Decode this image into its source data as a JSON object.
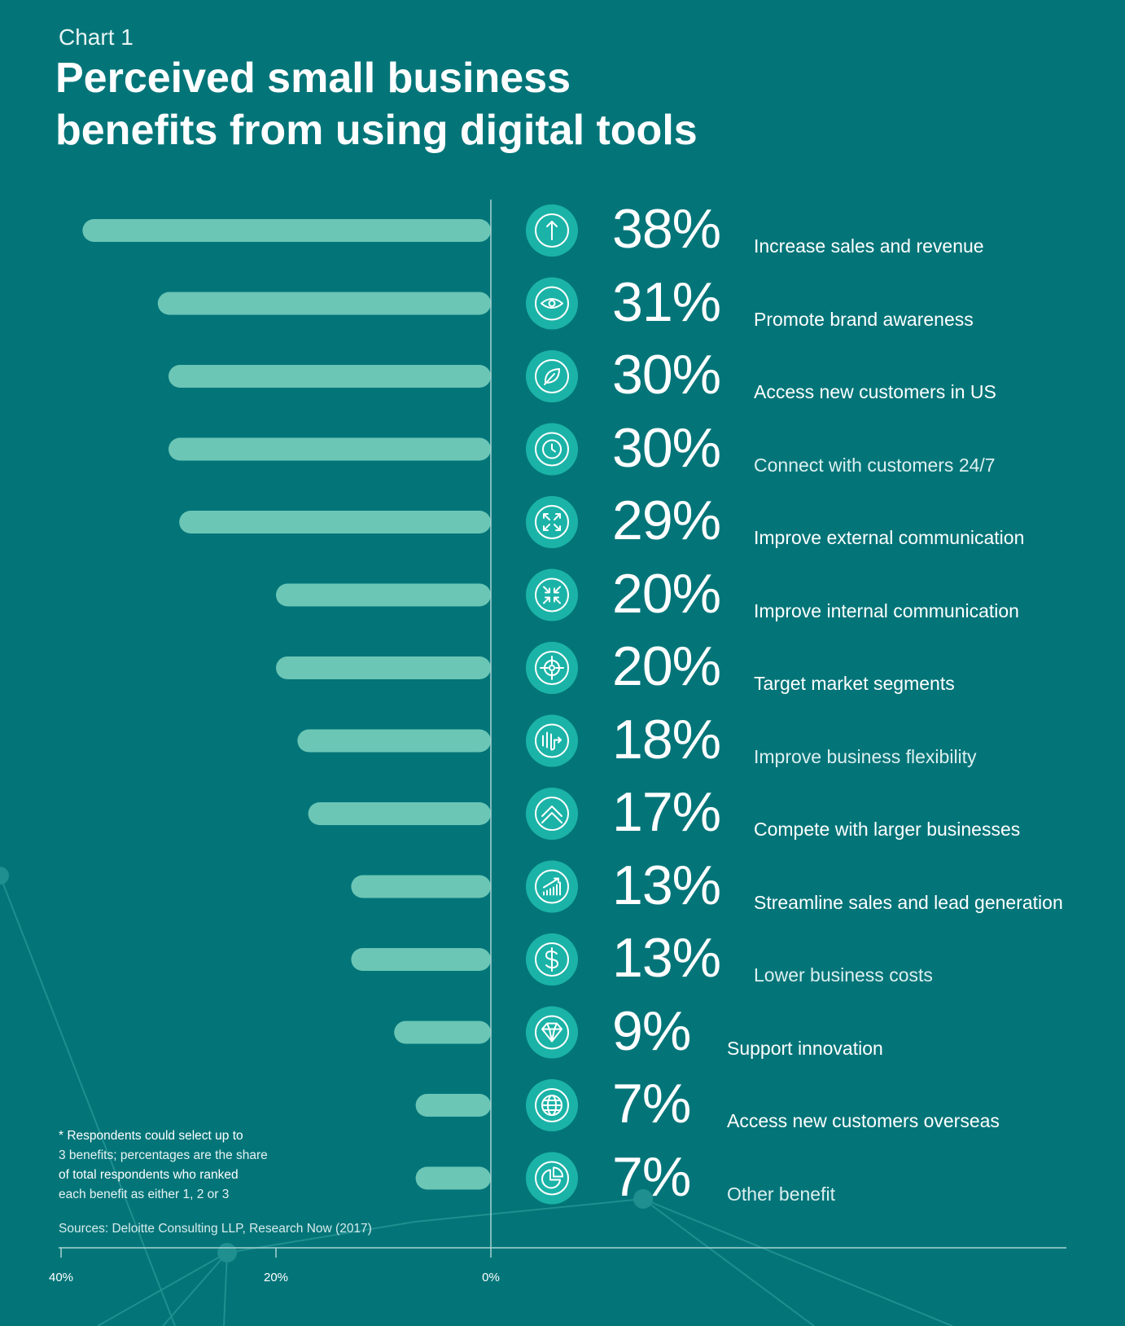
{
  "chart_label": "Chart 1",
  "title_lines": [
    "Perceived small business",
    "benefits from using digital tools"
  ],
  "footnote_lines": [
    "* Respondents could select up to",
    "3 benefits; percentages are the share",
    "of total respondents who ranked",
    "each benefit as either 1, 2 or 3"
  ],
  "sources": "Sources: Deloitte Consulting LLP, Research Now (2017)",
  "colors": {
    "background": "#037579",
    "bar": "#6cc6b5",
    "icon_circle": "#1bb3a7",
    "axis": "#a9d3d3"
  },
  "chart_data": {
    "type": "bar",
    "orientation": "horizontal",
    "direction": "leftward",
    "xlim": [
      0,
      40
    ],
    "x_ticks": [
      "40%",
      "20%",
      "0%"
    ],
    "x_tick_values": [
      40,
      20,
      0
    ],
    "legend": "none",
    "grid": false,
    "categories": [
      "Increase sales and revenue",
      "Promote brand awareness",
      "Access new customers in US",
      "Connect with customers 24/7",
      "Improve external communication",
      "Improve internal communication",
      "Target market segments",
      "Improve business flexibility",
      "Compete with larger businesses",
      "Streamline sales and lead generation",
      "Lower business costs",
      "Support innovation",
      "Access new customers overseas",
      "Other benefit"
    ],
    "values": [
      38,
      31,
      30,
      30,
      29,
      20,
      20,
      18,
      17,
      13,
      13,
      9,
      7,
      7
    ],
    "value_labels": [
      "38%",
      "31%",
      "30%",
      "30%",
      "29%",
      "20%",
      "20%",
      "18%",
      "17%",
      "13%",
      "13%",
      "9%",
      "7%",
      "7%"
    ],
    "icons": [
      "arrow-up-icon",
      "eye-icon",
      "leaf-icon",
      "clock-icon",
      "expand-arrows-icon",
      "compress-arrows-icon",
      "target-icon",
      "wave-arrow-icon",
      "chevron-up-icon",
      "growth-chart-icon",
      "dollar-icon",
      "diamond-icon",
      "globe-icon",
      "pie-chart-icon"
    ]
  }
}
